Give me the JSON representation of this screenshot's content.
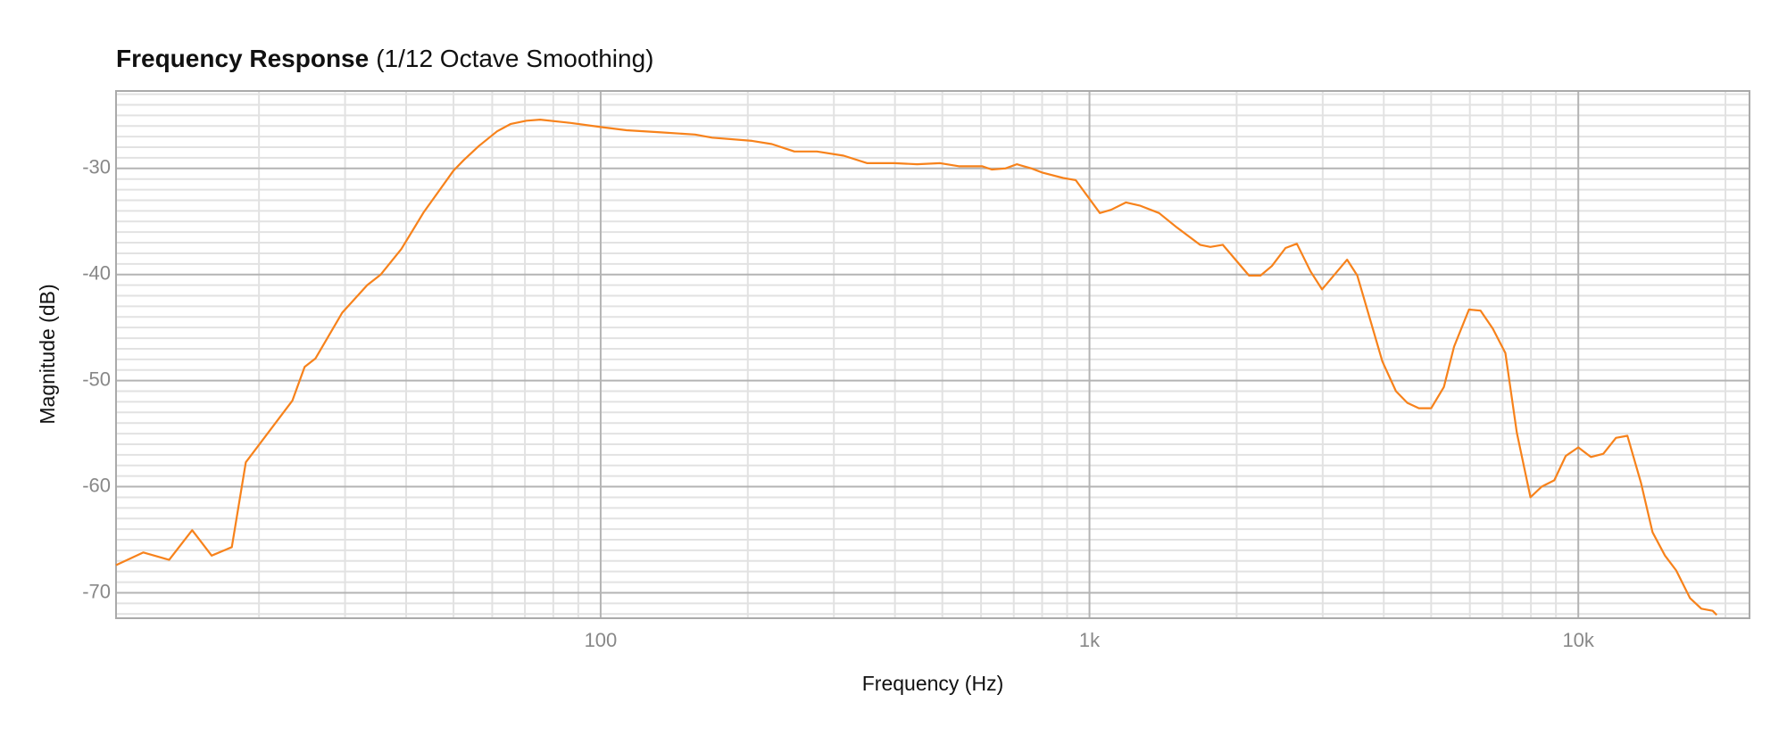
{
  "chart_data": {
    "type": "line",
    "title": "Frequency Response",
    "subtitle": "(1/12 Octave Smoothing)",
    "x_label": "Frequency (Hz)",
    "y_label": "Magnitude (dB)",
    "xscale": "log",
    "grid": true,
    "xlim": [
      10.2,
      22400
    ],
    "ylim": [
      -72.4,
      -22.7
    ],
    "xticks": [
      100,
      {
        "value": 1000,
        "label": "1k"
      },
      {
        "value": 10000,
        "label": "10k"
      }
    ],
    "xminorticks": [
      20,
      30,
      40,
      50,
      60,
      70,
      80,
      90,
      200,
      300,
      400,
      500,
      600,
      700,
      800,
      900,
      2000,
      3000,
      4000,
      5000,
      6000,
      7000,
      8000,
      9000,
      20000
    ],
    "yticks": [
      -30,
      -40,
      -50,
      -60,
      -70
    ],
    "yminorticks": [
      -72,
      -71,
      -69,
      -68,
      -67,
      -66,
      -65,
      -64,
      -63,
      -62,
      -61,
      -59,
      -58,
      -57,
      -56,
      -55,
      -54,
      -53,
      -52,
      -51,
      -49,
      -48,
      -47,
      -46,
      -45,
      -44,
      -43,
      -42,
      -41,
      -39,
      -38,
      -37,
      -36,
      -35,
      -34,
      -33,
      -32,
      -31,
      -29,
      -28,
      -27,
      -26,
      -25,
      -24,
      -23
    ],
    "series": [
      {
        "color": "#f7821b",
        "x": [
          10.2,
          11.6,
          13.1,
          14.6,
          16.0,
          17.6,
          18.8,
          23.4,
          24.8,
          26.1,
          29.6,
          33.3,
          35.5,
          39.1,
          43.5,
          46.9,
          50.0,
          52.5,
          56.3,
          61.4,
          65.5,
          70.5,
          75.2,
          86.5,
          100,
          113,
          133,
          156,
          169,
          204,
          224,
          249,
          277,
          314,
          351,
          399,
          444,
          495,
          542,
          604,
          631,
          673,
          710,
          761,
          802,
          883,
          937,
          1050,
          1107,
          1188,
          1267,
          1388,
          1503,
          1683,
          1767,
          1874,
          2120,
          2238,
          2361,
          2518,
          2656,
          2833,
          2990,
          3366,
          3531,
          3974,
          4236,
          4470,
          4720,
          5002,
          5308,
          5570,
          5975,
          6310,
          6684,
          7093,
          7485,
          7981,
          8417,
          8931,
          9424,
          10000,
          10610,
          11250,
          11940,
          12600,
          13430,
          14190,
          15040,
          15860,
          16920,
          17850,
          18830,
          19200
        ],
        "values": [
          -67.4,
          -66.2,
          -66.9,
          -64.1,
          -66.5,
          -65.7,
          -57.7,
          -51.9,
          -48.7,
          -47.9,
          -43.6,
          -41.0,
          -40.0,
          -37.6,
          -34.1,
          -32.0,
          -30.2,
          -29.2,
          -27.9,
          -26.5,
          -25.8,
          -25.5,
          -25.4,
          -25.7,
          -26.1,
          -26.4,
          -26.6,
          -26.8,
          -27.1,
          -27.4,
          -27.7,
          -28.4,
          -28.4,
          -28.8,
          -29.5,
          -29.5,
          -29.6,
          -29.5,
          -29.8,
          -29.8,
          -30.1,
          -30.0,
          -29.6,
          -30.0,
          -30.4,
          -30.9,
          -31.1,
          -34.2,
          -33.9,
          -33.2,
          -33.5,
          -34.2,
          -35.5,
          -37.2,
          -37.4,
          -37.2,
          -40.1,
          -40.1,
          -39.2,
          -37.5,
          -37.1,
          -39.7,
          -41.4,
          -38.6,
          -40.1,
          -48.2,
          -51.0,
          -52.1,
          -52.6,
          -52.6,
          -50.6,
          -46.8,
          -43.3,
          -43.4,
          -45.1,
          -47.4,
          -54.9,
          -61.0,
          -60.0,
          -59.4,
          -57.1,
          -56.3,
          -57.2,
          -56.9,
          -55.4,
          -55.2,
          -59.6,
          -64.3,
          -66.5,
          -67.9,
          -70.5,
          -71.5,
          -71.7,
          -72.1
        ]
      }
    ]
  }
}
